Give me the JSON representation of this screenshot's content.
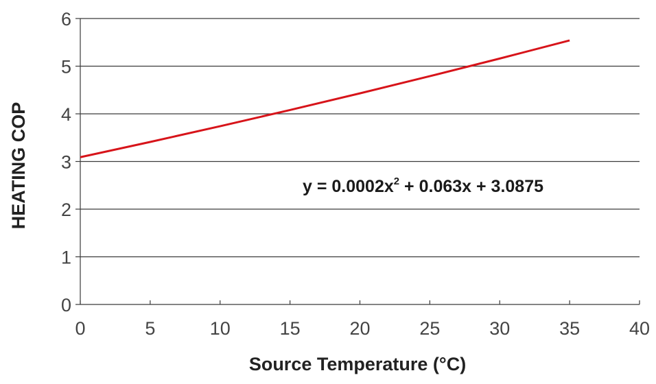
{
  "chart_data": {
    "type": "line",
    "title": "",
    "xlabel": "Source Temperature (°C)",
    "ylabel": "HEATING COP",
    "xlim": [
      0,
      40
    ],
    "ylim": [
      0,
      6
    ],
    "xticks": [
      0,
      5,
      10,
      15,
      20,
      25,
      30,
      35,
      40
    ],
    "yticks": [
      0,
      1,
      2,
      3,
      4,
      5,
      6
    ],
    "grid": "horizontal",
    "legend": "none",
    "series": [
      {
        "color": "#d7141a",
        "x": [
          0,
          5,
          10,
          15,
          20,
          25,
          30,
          35
        ],
        "y": [
          3.09,
          3.41,
          3.74,
          4.08,
          4.43,
          4.79,
          5.16,
          5.54
        ]
      }
    ],
    "annotation": {
      "text_before_sup": "y = 0.0002x",
      "sup": "2",
      "text_after_sup": " + 0.063x + 3.0875"
    }
  }
}
